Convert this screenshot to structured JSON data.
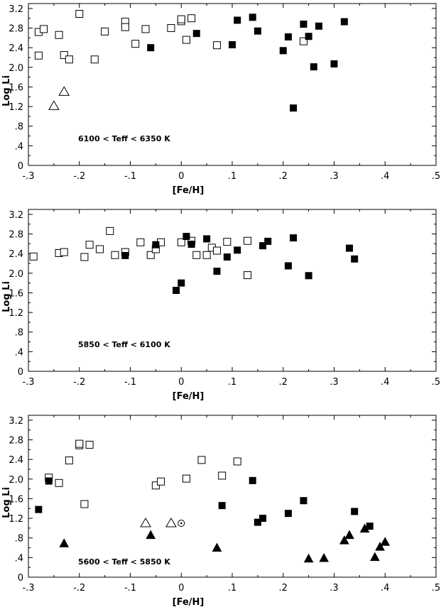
{
  "chart_data": [
    {
      "type": "scatter",
      "xlabel": "[Fe/H]",
      "ylabel": "Log Li",
      "xlim": [
        -0.3,
        0.5
      ],
      "ylim": [
        0,
        3.3
      ],
      "x_ticks": [
        "-.3",
        "-.2",
        "-.1",
        "0",
        ".1",
        ".2",
        ".3",
        ".4",
        ".5"
      ],
      "y_ticks": [
        "0",
        ".4",
        ".8",
        "1.2",
        "1.6",
        "2.0",
        "2.4",
        "2.8",
        "3.2"
      ],
      "annotation": "6100 < Teff < 6350 K",
      "series": [
        {
          "marker": "open-square",
          "points": [
            [
              -0.28,
              2.24
            ],
            [
              -0.28,
              2.72
            ],
            [
              -0.27,
              2.78
            ],
            [
              -0.24,
              2.66
            ],
            [
              -0.23,
              2.25
            ],
            [
              -0.22,
              2.16
            ],
            [
              -0.2,
              3.09
            ],
            [
              -0.17,
              2.16
            ],
            [
              -0.15,
              2.73
            ],
            [
              -0.11,
              2.93
            ],
            [
              -0.11,
              2.82
            ],
            [
              -0.09,
              2.48
            ],
            [
              -0.07,
              2.78
            ],
            [
              -0.02,
              2.8
            ],
            [
              0.0,
              2.94
            ],
            [
              0.0,
              2.98
            ],
            [
              0.01,
              2.56
            ],
            [
              0.02,
              3.0
            ],
            [
              0.07,
              2.45
            ],
            [
              0.24,
              2.53
            ]
          ]
        },
        {
          "marker": "filled-square",
          "points": [
            [
              -0.06,
              2.4
            ],
            [
              0.03,
              2.69
            ],
            [
              0.1,
              2.46
            ],
            [
              0.11,
              2.96
            ],
            [
              0.14,
              3.02
            ],
            [
              0.15,
              2.74
            ],
            [
              0.2,
              2.34
            ],
            [
              0.21,
              2.62
            ],
            [
              0.22,
              1.17
            ],
            [
              0.24,
              2.88
            ],
            [
              0.25,
              2.63
            ],
            [
              0.26,
              2.01
            ],
            [
              0.27,
              2.84
            ],
            [
              0.3,
              2.07
            ],
            [
              0.32,
              2.93
            ]
          ]
        },
        {
          "marker": "open-triangle",
          "points": [
            [
              -0.25,
              1.21
            ],
            [
              -0.23,
              1.5
            ]
          ]
        }
      ]
    },
    {
      "type": "scatter",
      "xlabel": "[Fe/H]",
      "ylabel": "Log Li",
      "xlim": [
        -0.3,
        0.5
      ],
      "ylim": [
        0,
        3.3
      ],
      "x_ticks": [
        "-.3",
        "-.2",
        "-.1",
        "0",
        ".1",
        ".2",
        ".3",
        ".4",
        ".5"
      ],
      "y_ticks": [
        "0",
        ".4",
        ".8",
        "1.2",
        "1.6",
        "2.0",
        "2.4",
        "2.8",
        "3.2"
      ],
      "annotation": "5850 < Teff < 6100 K",
      "series": [
        {
          "marker": "open-square",
          "points": [
            [
              -0.29,
              2.34
            ],
            [
              -0.24,
              2.41
            ],
            [
              -0.23,
              2.43
            ],
            [
              -0.19,
              2.33
            ],
            [
              -0.18,
              2.58
            ],
            [
              -0.16,
              2.49
            ],
            [
              -0.14,
              2.86
            ],
            [
              -0.13,
              2.37
            ],
            [
              -0.11,
              2.43
            ],
            [
              -0.08,
              2.63
            ],
            [
              -0.06,
              2.37
            ],
            [
              -0.05,
              2.49
            ],
            [
              -0.04,
              2.63
            ],
            [
              0.0,
              2.63
            ],
            [
              0.02,
              2.66
            ],
            [
              0.03,
              2.37
            ],
            [
              0.05,
              2.37
            ],
            [
              0.06,
              2.52
            ],
            [
              0.07,
              2.46
            ],
            [
              0.09,
              2.64
            ],
            [
              0.13,
              2.66
            ],
            [
              0.13,
              1.96
            ]
          ]
        },
        {
          "marker": "filled-square",
          "points": [
            [
              -0.11,
              2.36
            ],
            [
              -0.05,
              2.58
            ],
            [
              -0.01,
              1.65
            ],
            [
              0.0,
              1.8
            ],
            [
              0.01,
              2.75
            ],
            [
              0.02,
              2.59
            ],
            [
              0.05,
              2.7
            ],
            [
              0.07,
              2.04
            ],
            [
              0.09,
              2.33
            ],
            [
              0.11,
              2.47
            ],
            [
              0.16,
              2.56
            ],
            [
              0.17,
              2.65
            ],
            [
              0.21,
              2.15
            ],
            [
              0.22,
              2.72
            ],
            [
              0.25,
              1.95
            ],
            [
              0.33,
              2.51
            ],
            [
              0.34,
              2.29
            ]
          ]
        }
      ]
    },
    {
      "type": "scatter",
      "xlabel": "[Fe/H]",
      "ylabel": "Log Li",
      "xlim": [
        -0.3,
        0.5
      ],
      "ylim": [
        0,
        3.3
      ],
      "x_ticks": [
        "-.3",
        "-.2",
        "-.1",
        "0",
        ".1",
        ".2",
        ".3",
        ".4",
        ".5"
      ],
      "y_ticks": [
        "0",
        ".4",
        ".8",
        "1.2",
        "1.6",
        "2.0",
        "2.4",
        "2.8",
        "3.2"
      ],
      "annotation": "5600 < Teff < 5850 K",
      "series": [
        {
          "marker": "open-square",
          "points": [
            [
              -0.26,
              2.03
            ],
            [
              -0.24,
              1.92
            ],
            [
              -0.22,
              2.38
            ],
            [
              -0.2,
              2.69
            ],
            [
              -0.2,
              2.72
            ],
            [
              -0.18,
              2.7
            ],
            [
              -0.19,
              1.49
            ],
            [
              -0.05,
              1.87
            ],
            [
              -0.04,
              1.95
            ],
            [
              0.01,
              2.01
            ],
            [
              0.04,
              2.39
            ],
            [
              0.08,
              2.07
            ],
            [
              0.11,
              2.36
            ]
          ]
        },
        {
          "marker": "filled-square",
          "points": [
            [
              -0.28,
              1.38
            ],
            [
              -0.26,
              1.96
            ],
            [
              0.08,
              1.46
            ],
            [
              0.14,
              1.97
            ],
            [
              0.15,
              1.12
            ],
            [
              0.16,
              1.2
            ],
            [
              0.21,
              1.3
            ],
            [
              0.24,
              1.56
            ],
            [
              0.34,
              1.34
            ],
            [
              0.37,
              1.04
            ]
          ]
        },
        {
          "marker": "filled-triangle",
          "points": [
            [
              -0.23,
              0.69
            ],
            [
              -0.06,
              0.86
            ],
            [
              0.07,
              0.6
            ],
            [
              0.25,
              0.38
            ],
            [
              0.28,
              0.39
            ],
            [
              0.32,
              0.75
            ],
            [
              0.33,
              0.86
            ],
            [
              0.36,
              0.99
            ],
            [
              0.38,
              0.41
            ],
            [
              0.39,
              0.62
            ],
            [
              0.4,
              0.72
            ]
          ]
        },
        {
          "marker": "open-triangle",
          "points": [
            [
              -0.07,
              1.1
            ],
            [
              -0.02,
              1.1
            ]
          ]
        },
        {
          "marker": "sun-symbol",
          "points": [
            [
              0.0,
              1.1
            ]
          ]
        }
      ]
    }
  ]
}
